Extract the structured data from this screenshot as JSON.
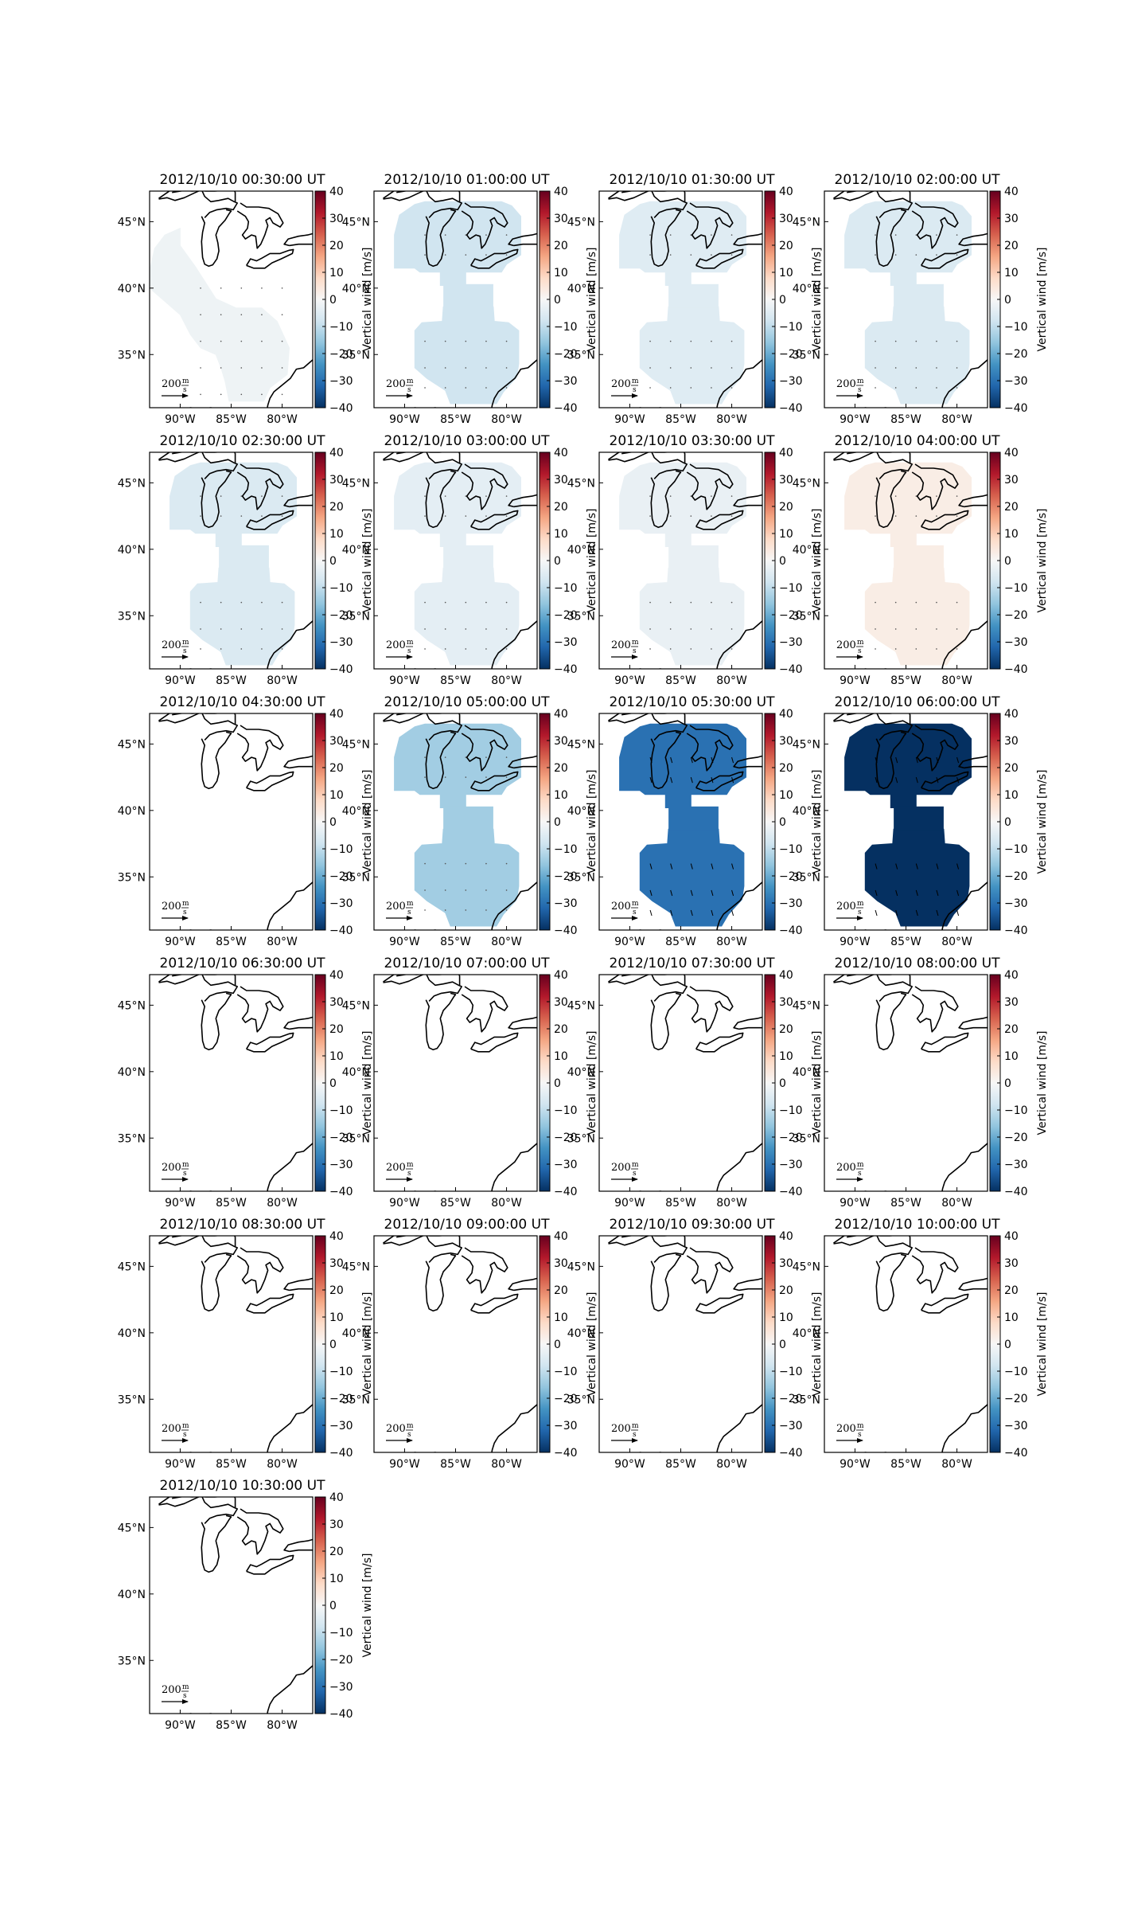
{
  "figure": {
    "colorbar": {
      "label": "Vertical wind [m/s]",
      "ticks": [
        40,
        30,
        20,
        10,
        0,
        -10,
        -20,
        -30,
        -40
      ],
      "tick_labels": [
        "40",
        "30",
        "20",
        "10",
        "0",
        "−10",
        "−20",
        "−30",
        "−40"
      ],
      "range": [
        -40,
        40
      ],
      "colormap": "RdBu_r",
      "stops": [
        "#053061",
        "#2166ac",
        "#4393c3",
        "#92c5de",
        "#d1e5f0",
        "#f7f7f7",
        "#fddbc7",
        "#f4a582",
        "#d6604d",
        "#b2182b",
        "#67001f"
      ]
    },
    "axes": {
      "lon_ticks": [
        "90°W",
        "85°W",
        "80°W"
      ],
      "lon_values": [
        -90,
        -85,
        -80
      ],
      "lat_ticks": [
        "45°N",
        "40°N",
        "35°N"
      ],
      "lat_values": [
        45,
        40,
        35
      ],
      "lon_range": [
        -93,
        -77
      ],
      "lat_range": [
        31,
        47.3
      ]
    },
    "scale_arrow": {
      "value": "200",
      "unit_num": "m",
      "unit_den": "s"
    },
    "coastline_color": "#000000"
  },
  "chart_data": {
    "type": "heatmap",
    "variable": "Vertical wind",
    "unit": "m/s",
    "panels": [
      {
        "title": "2012/10/10 00:30:00 UT",
        "vertical_wind": -2,
        "region": "west"
      },
      {
        "title": "2012/10/10 01:00:00 UT",
        "vertical_wind": -8,
        "region": "two_lobes"
      },
      {
        "title": "2012/10/10 01:30:00 UT",
        "vertical_wind": -5,
        "region": "two_lobes"
      },
      {
        "title": "2012/10/10 02:00:00 UT",
        "vertical_wind": -6,
        "region": "two_lobes"
      },
      {
        "title": "2012/10/10 02:30:00 UT",
        "vertical_wind": -6,
        "region": "two_lobes"
      },
      {
        "title": "2012/10/10 03:00:00 UT",
        "vertical_wind": -4,
        "region": "two_lobes"
      },
      {
        "title": "2012/10/10 03:30:00 UT",
        "vertical_wind": -3,
        "region": "two_lobes"
      },
      {
        "title": "2012/10/10 04:00:00 UT",
        "vertical_wind": 3,
        "region": "two_lobes"
      },
      {
        "title": "2012/10/10 04:30:00 UT",
        "vertical_wind": null,
        "region": "none"
      },
      {
        "title": "2012/10/10 05:00:00 UT",
        "vertical_wind": -14,
        "region": "two_lobes"
      },
      {
        "title": "2012/10/10 05:30:00 UT",
        "vertical_wind": -30,
        "region": "two_lobes"
      },
      {
        "title": "2012/10/10 06:00:00 UT",
        "vertical_wind": -40,
        "region": "two_lobes"
      },
      {
        "title": "2012/10/10 06:30:00 UT",
        "vertical_wind": null,
        "region": "none"
      },
      {
        "title": "2012/10/10 07:00:00 UT",
        "vertical_wind": null,
        "region": "none"
      },
      {
        "title": "2012/10/10 07:30:00 UT",
        "vertical_wind": null,
        "region": "none"
      },
      {
        "title": "2012/10/10 08:00:00 UT",
        "vertical_wind": null,
        "region": "none"
      },
      {
        "title": "2012/10/10 08:30:00 UT",
        "vertical_wind": null,
        "region": "none"
      },
      {
        "title": "2012/10/10 09:00:00 UT",
        "vertical_wind": null,
        "region": "none"
      },
      {
        "title": "2012/10/10 09:30:00 UT",
        "vertical_wind": null,
        "region": "none"
      },
      {
        "title": "2012/10/10 10:00:00 UT",
        "vertical_wind": null,
        "region": "none"
      },
      {
        "title": "2012/10/10 10:30:00 UT",
        "vertical_wind": null,
        "region": "none"
      }
    ]
  }
}
